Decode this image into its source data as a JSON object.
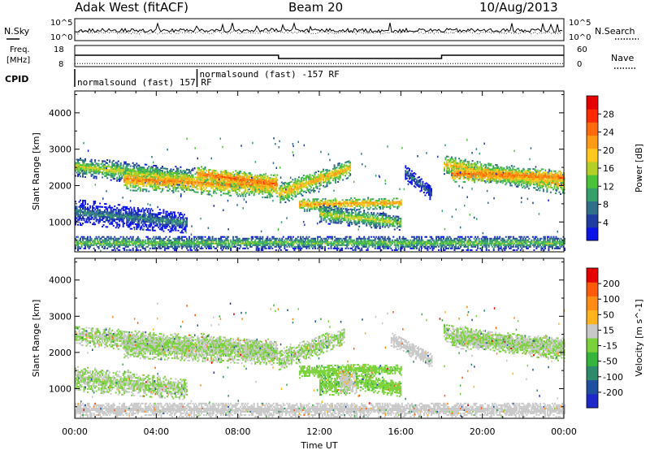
{
  "header": {
    "station": "Adak West (fitACF)",
    "beam": "Beam 20",
    "date": "10/Aug/2013"
  },
  "labels": {
    "nsky": "N.Sky",
    "nsearch": "N.Search",
    "freq_line1": "Freq.",
    "freq_line2": "[MHz]",
    "nave": "Nave",
    "cpid": "CPID",
    "noise_ticks": [
      "10^5",
      "10^0"
    ],
    "freq_ticks": [
      "18",
      "8"
    ],
    "nave_ticks": [
      "60",
      "0"
    ]
  },
  "cpid_segments": [
    {
      "label": "normalsound (fast) 157 RF",
      "start_hr": 0,
      "end_hr": 6
    },
    {
      "label": "normalsound (fast) -157 RF",
      "start_hr": 6,
      "end_hr": 24
    }
  ],
  "chart_data": [
    {
      "type": "heatmap",
      "name": "power",
      "ylabel": "Slant Range [km]",
      "xlabel": "",
      "xlim": [
        0,
        24
      ],
      "ylim": [
        180,
        4600
      ],
      "yticks": [
        1000,
        2000,
        3000,
        4000
      ],
      "colorbar": {
        "label": "Power [dB]",
        "ticks": [
          "4",
          "8",
          "12",
          "16",
          "20",
          "24",
          "28"
        ],
        "colors": [
          "#0a14e6",
          "#1f3ca0",
          "#2f6f8a",
          "#36a06a",
          "#4cc23a",
          "#b4cf28",
          "#ffc81e",
          "#ff9a14",
          "#ff6a0a",
          "#ff2a00",
          "#e60000"
        ],
        "range": [
          0,
          32
        ]
      },
      "bands": [
        {
          "t0": 0.0,
          "t1": 5.8,
          "c0": 2550,
          "c1": 2200,
          "w0": 260,
          "w1": 300,
          "v": 17
        },
        {
          "t0": 2.4,
          "t1": 9.9,
          "c0": 2200,
          "c1": 2000,
          "w0": 300,
          "w1": 320,
          "v": 23
        },
        {
          "t0": 6.0,
          "t1": 9.9,
          "c0": 2350,
          "c1": 2050,
          "w0": 200,
          "w1": 260,
          "v": 25
        },
        {
          "t0": 10.0,
          "t1": 13.5,
          "c0": 1800,
          "c1": 2500,
          "w0": 300,
          "w1": 240,
          "v": 21
        },
        {
          "t0": 11.0,
          "t1": 16.0,
          "c0": 1500,
          "c1": 1550,
          "w0": 180,
          "w1": 150,
          "v": 22
        },
        {
          "t0": 12.0,
          "t1": 16.0,
          "c0": 1250,
          "c1": 1000,
          "w0": 260,
          "w1": 200,
          "v": 17
        },
        {
          "t0": 16.2,
          "t1": 17.5,
          "c0": 2400,
          "c1": 1800,
          "w0": 200,
          "w1": 200,
          "v": 8
        },
        {
          "t0": 18.1,
          "t1": 24.0,
          "c0": 2600,
          "c1": 2050,
          "w0": 260,
          "w1": 280,
          "v": 21
        },
        {
          "t0": 18.5,
          "t1": 24.0,
          "c0": 2350,
          "c1": 2250,
          "w0": 220,
          "w1": 200,
          "v": 25
        },
        {
          "t0": 0.0,
          "t1": 5.5,
          "c0": 1300,
          "c1": 1000,
          "w0": 350,
          "w1": 280,
          "v": 9
        },
        {
          "t0": 0.0,
          "t1": 24.0,
          "c0": 450,
          "c1": 450,
          "w0": 200,
          "w1": 200,
          "v": 14
        }
      ]
    },
    {
      "type": "heatmap",
      "name": "velocity",
      "ylabel": "Slant Range [km]",
      "xlabel": "Time UT",
      "xlim": [
        0,
        24
      ],
      "ylim": [
        180,
        4600
      ],
      "yticks": [
        1000,
        2000,
        3000,
        4000
      ],
      "xticks": [
        "00:00",
        "04:00",
        "08:00",
        "12:00",
        "16:00",
        "20:00",
        "00:00"
      ],
      "colorbar": {
        "label": "Velocity [m s^-1]",
        "ticks": [
          "200",
          "100",
          "50",
          "15",
          "-15",
          "-50",
          "-100",
          "-200"
        ],
        "colors": [
          "#1e28c8",
          "#1f50a0",
          "#2d8a6a",
          "#37b43c",
          "#7ad23a",
          "#c8c8c8",
          "#ffb41e",
          "#ff8c14",
          "#ff5a0a",
          "#e60000"
        ],
        "range": [
          -250,
          250
        ]
      },
      "bands": [
        {
          "t0": 0.0,
          "t1": 5.8,
          "c0": 2500,
          "c1": 2200,
          "w0": 260,
          "w1": 300,
          "v": 0
        },
        {
          "t0": 2.4,
          "t1": 9.9,
          "c0": 2200,
          "c1": 2000,
          "w0": 320,
          "w1": 320,
          "v": 0
        },
        {
          "t0": 6.0,
          "t1": 9.9,
          "c0": 2350,
          "c1": 2050,
          "w0": 200,
          "w1": 260,
          "v": 0
        },
        {
          "t0": 10.0,
          "t1": 13.2,
          "c0": 1800,
          "c1": 2500,
          "w0": 300,
          "w1": 240,
          "v": 0
        },
        {
          "t0": 11.0,
          "t1": 16.0,
          "c0": 1500,
          "c1": 1550,
          "w0": 180,
          "w1": 150,
          "v": -40
        },
        {
          "t0": 12.0,
          "t1": 13.5,
          "c0": 1150,
          "c1": 1150,
          "w0": 300,
          "w1": 300,
          "v": -40
        },
        {
          "t0": 13.0,
          "t1": 13.8,
          "c0": 1250,
          "c1": 1150,
          "w0": 330,
          "w1": 320,
          "v": 40
        },
        {
          "t0": 13.8,
          "t1": 16.0,
          "c0": 1250,
          "c1": 1000,
          "w0": 260,
          "w1": 200,
          "v": -40
        },
        {
          "t0": 15.5,
          "t1": 17.5,
          "c0": 2400,
          "c1": 1800,
          "w0": 200,
          "w1": 200,
          "v": 30
        },
        {
          "t0": 18.1,
          "t1": 24.0,
          "c0": 2550,
          "c1": 2050,
          "w0": 260,
          "w1": 280,
          "v": 0
        },
        {
          "t0": 18.5,
          "t1": 24.0,
          "c0": 2350,
          "c1": 2250,
          "w0": 220,
          "w1": 200,
          "v": 0
        },
        {
          "t0": 0.0,
          "t1": 5.5,
          "c0": 1300,
          "c1": 1000,
          "w0": 350,
          "w1": 280,
          "v": 0
        },
        {
          "t0": 0.0,
          "t1": 24.0,
          "c0": 450,
          "c1": 450,
          "w0": 200,
          "w1": 200,
          "v": 30
        }
      ]
    }
  ],
  "freq_series": {
    "x": [
      0,
      10,
      10,
      18,
      18,
      24
    ],
    "y": [
      15,
      15,
      13,
      13,
      15,
      15
    ]
  },
  "nave_series": {
    "x": [
      0,
      24
    ],
    "y": [
      10,
      10
    ]
  }
}
